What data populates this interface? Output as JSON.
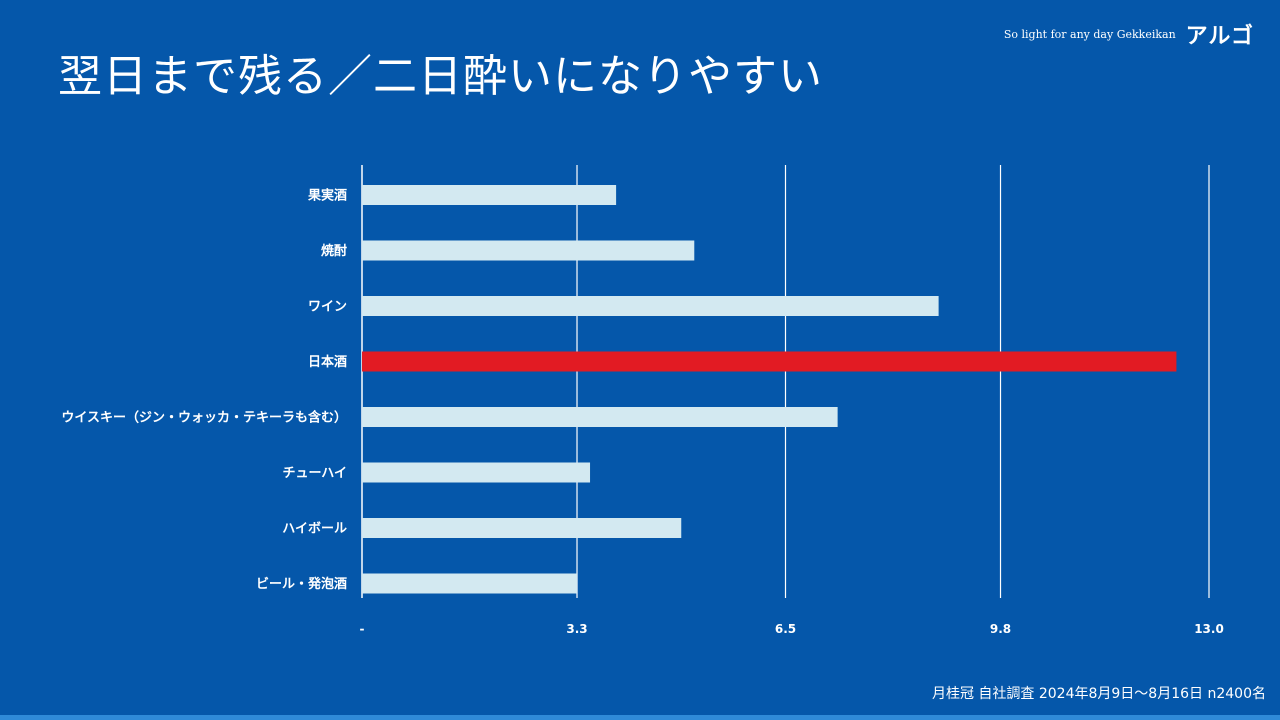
{
  "title": "翌日まで残る／二日酔いになりやすい",
  "brand": {
    "tagline": "So light for any day Gekkeikan",
    "name": "アルゴ"
  },
  "footnote": "月桂冠 自社調査 2024年8月9日〜8月16日 n2400名",
  "colors": {
    "background": "#0557aa",
    "bar": "#d3e9f1",
    "highlight": "#e21b23",
    "grid": "#ffffff"
  },
  "chart_data": {
    "type": "bar",
    "orientation": "horizontal",
    "title": "翌日まで残る／二日酔いになりやすい",
    "categories": [
      "果実酒",
      "焼酎",
      "ワイン",
      "日本酒",
      "ウイスキー（ジン・ウォッカ・テキーラも含む）",
      "チューハイ",
      "ハイボール",
      "ビール・発泡酒"
    ],
    "values": [
      3.9,
      5.1,
      8.85,
      12.5,
      7.3,
      3.5,
      4.9,
      3.3
    ],
    "highlight": "日本酒",
    "xlim": [
      0,
      13.0
    ],
    "xticks": [
      0,
      3.3,
      6.5,
      9.8,
      13.0
    ],
    "xtick_labels": [
      "-",
      "3.3",
      "6.5",
      "9.8",
      "13.0"
    ],
    "grid": true,
    "legend": "none"
  }
}
